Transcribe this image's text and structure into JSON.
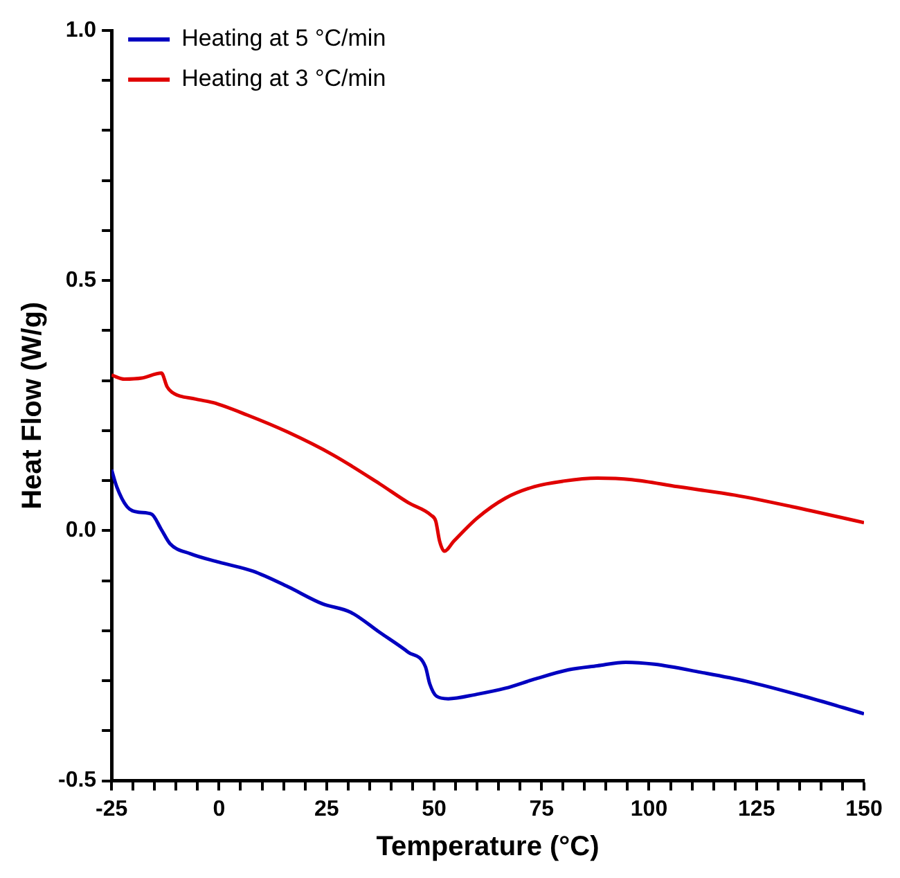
{
  "chart_data": {
    "type": "line",
    "xlabel": "Temperature (°C)",
    "ylabel": "Heat Flow (W/g)",
    "xlim": [
      -25,
      150
    ],
    "ylim": [
      -0.5,
      1.0
    ],
    "xticks": [
      -25,
      {
        "value": -20,
        "label": null
      },
      {
        "value": -15,
        "label": null
      },
      {
        "value": -10,
        "label": null
      },
      {
        "value": -5,
        "label": null
      },
      0,
      {
        "value": 5,
        "label": null
      },
      {
        "value": 10,
        "label": null
      },
      {
        "value": 15,
        "label": null
      },
      {
        "value": 20,
        "label": null
      },
      25,
      {
        "value": 30,
        "label": null
      },
      {
        "value": 35,
        "label": null
      },
      {
        "value": 40,
        "label": null
      },
      {
        "value": 45,
        "label": null
      },
      50,
      {
        "value": 55,
        "label": null
      },
      {
        "value": 60,
        "label": null
      },
      {
        "value": 65,
        "label": null
      },
      {
        "value": 70,
        "label": null
      },
      75,
      {
        "value": 80,
        "label": null
      },
      {
        "value": 85,
        "label": null
      },
      {
        "value": 90,
        "label": null
      },
      {
        "value": 95,
        "label": null
      },
      100,
      {
        "value": 105,
        "label": null
      },
      {
        "value": 110,
        "label": null
      },
      {
        "value": 115,
        "label": null
      },
      {
        "value": 120,
        "label": null
      },
      125,
      {
        "value": 130,
        "label": null
      },
      {
        "value": 135,
        "label": null
      },
      {
        "value": 140,
        "label": null
      },
      {
        "value": 145,
        "label": null
      },
      150
    ],
    "yticks": [
      {
        "value": -0.5,
        "label": "-0.5"
      },
      {
        "value": -0.4,
        "label": null
      },
      {
        "value": -0.3,
        "label": null
      },
      {
        "value": -0.2,
        "label": null
      },
      {
        "value": -0.1,
        "label": null
      },
      {
        "value": 0,
        "label": "0.0"
      },
      {
        "value": 0.1,
        "label": null
      },
      {
        "value": 0.2,
        "label": null
      },
      {
        "value": 0.3,
        "label": null
      },
      {
        "value": 0.4,
        "label": null
      },
      {
        "value": 0.5,
        "label": "0.5"
      },
      {
        "value": 0.6,
        "label": null
      },
      {
        "value": 0.7,
        "label": null
      },
      {
        "value": 0.8,
        "label": null
      },
      {
        "value": 0.9,
        "label": null
      },
      {
        "value": 1.0,
        "label": "1.0"
      }
    ],
    "grid": false,
    "legend": "top left",
    "marker": "none",
    "line_style": "solid",
    "series": [
      {
        "name": "Heating at 5 °C/min",
        "color": "#0000c0",
        "x": [
          -25,
          -23.8,
          -21.4,
          -18.7,
          -15.7,
          -13.4,
          -11.4,
          -6.7,
          0,
          7.9,
          16,
          24,
          30.6,
          37.3,
          44,
          48,
          49,
          50.6,
          53.3,
          60,
          66.6,
          73.3,
          81.3,
          88,
          94.6,
          101.3,
          112,
          122.6,
          136,
          150
        ],
        "values": [
          0.122,
          0.088,
          0.048,
          0.037,
          0.033,
          0.002,
          -0.026,
          -0.046,
          -0.063,
          -0.081,
          -0.112,
          -0.146,
          -0.163,
          -0.203,
          -0.243,
          -0.272,
          -0.306,
          -0.331,
          -0.336,
          -0.327,
          -0.315,
          -0.297,
          -0.278,
          -0.27,
          -0.263,
          -0.267,
          -0.283,
          -0.301,
          -0.331,
          -0.366
        ]
      },
      {
        "name": "Heating at 3 °C/min",
        "color": "#e00000",
        "x": [
          -25,
          -22,
          -18,
          -13.4,
          -12.1,
          -11,
          -5.4,
          -1.4,
          6.6,
          16,
          26.6,
          37.3,
          44,
          49.3,
          50.4,
          51.3,
          52.4,
          54.6,
          60,
          66.6,
          73.3,
          80,
          88,
          96,
          106.6,
          120,
          133.3,
          150
        ],
        "values": [
          0.311,
          0.303,
          0.305,
          0.315,
          0.288,
          0.277,
          0.263,
          0.256,
          0.231,
          0.197,
          0.151,
          0.094,
          0.056,
          0.031,
          0.019,
          -0.021,
          -0.041,
          -0.021,
          0.025,
          0.065,
          0.088,
          0.099,
          0.105,
          0.102,
          0.088,
          0.071,
          0.048,
          0.016
        ]
      }
    ]
  }
}
